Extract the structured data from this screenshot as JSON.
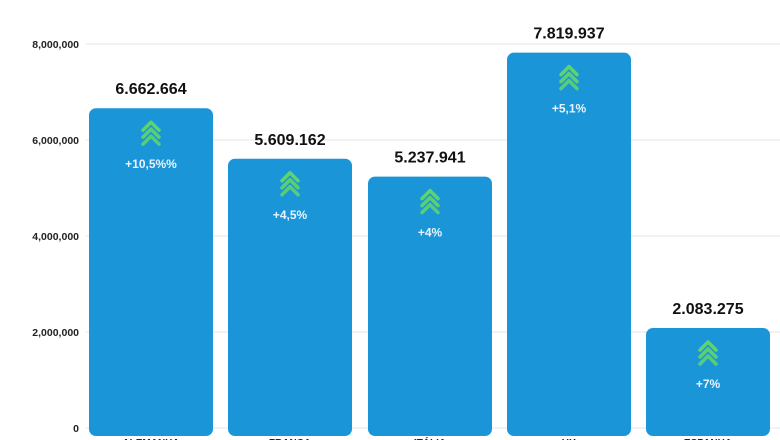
{
  "chart_data": {
    "type": "bar",
    "categories": [
      "ALEMANHA",
      "FRANÇA",
      "ITÁLIA",
      "UK",
      "ESPANHA"
    ],
    "values": [
      6662664,
      5609162,
      5237941,
      7819937,
      2083275
    ],
    "value_labels": [
      "6.662.664",
      "5.609.162",
      "5.237.941",
      "7.819.937",
      "2.083.275"
    ],
    "change_labels": [
      "+10,5%%",
      "+4,5%",
      "+4%",
      "+5,1%",
      "+7%"
    ],
    "yticks": [
      0,
      2000000,
      4000000,
      6000000,
      8000000
    ],
    "ytick_labels": [
      "0",
      "2,000,000",
      "4,000,000",
      "6,000,000",
      "8,000,000"
    ],
    "ylim": [
      0,
      8000000
    ],
    "title": "",
    "xlabel": "",
    "ylabel": "",
    "grid": true,
    "colors": {
      "bar": "#1a96d8",
      "arrow": "#5fd36e",
      "change_text": "#e8f4ff"
    },
    "icon": "double-chevron-up-icon"
  }
}
